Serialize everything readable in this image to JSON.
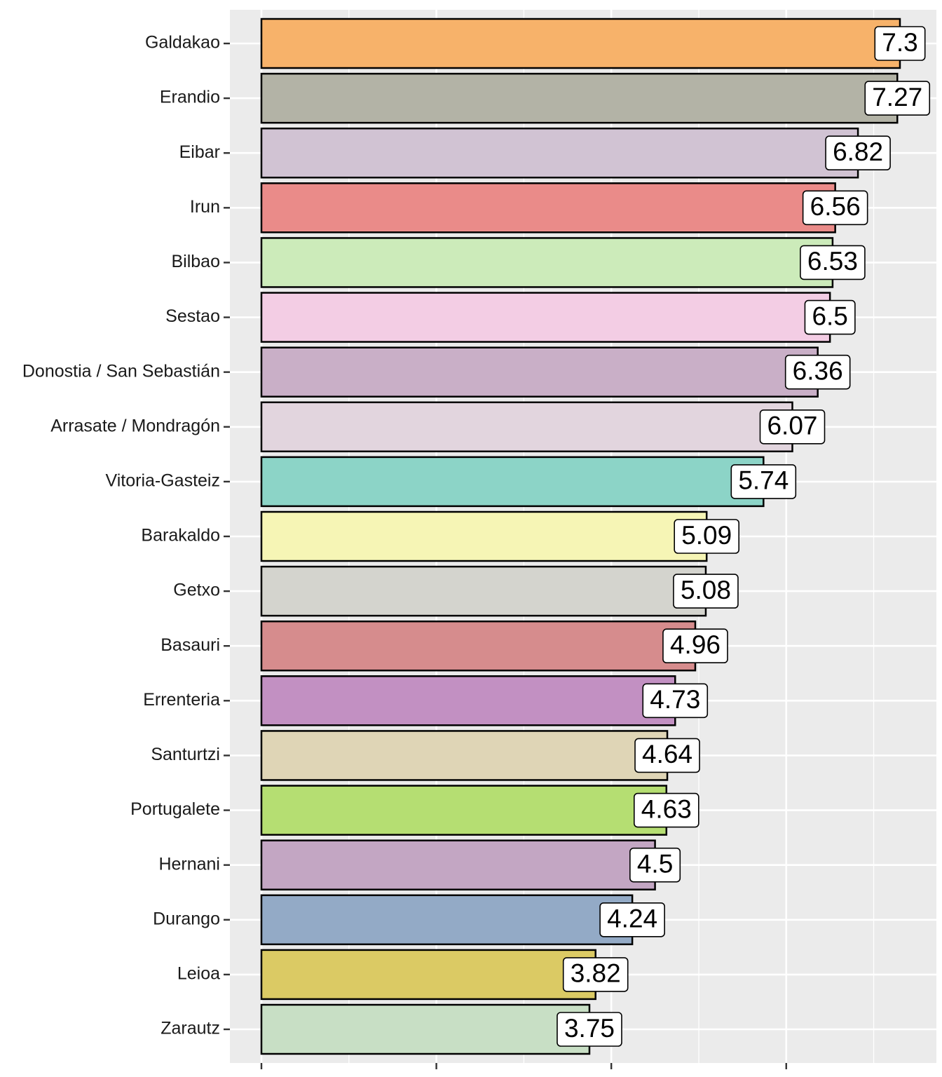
{
  "chart_data": {
    "type": "bar",
    "orientation": "horizontal",
    "title": "",
    "xlabel": "",
    "ylabel": "",
    "xlim": [
      0,
      7.6
    ],
    "categories": [
      "Galdakao",
      "Erandio",
      "Eibar",
      "Irun",
      "Bilbao",
      "Sestao",
      "Donostia / San Sebastián",
      "Arrasate / Mondragón",
      "Vitoria-Gasteiz",
      "Barakaldo",
      "Getxo",
      "Basauri",
      "Errenteria",
      "Santurtzi",
      "Portugalete",
      "Hernani",
      "Durango",
      "Leioa",
      "Zarautz"
    ],
    "values": [
      7.3,
      7.27,
      6.82,
      6.56,
      6.53,
      6.5,
      6.36,
      6.07,
      5.74,
      5.09,
      5.08,
      4.96,
      4.73,
      4.64,
      4.63,
      4.5,
      4.24,
      3.82,
      3.75
    ],
    "value_labels": [
      "7.3",
      "7.27",
      "6.82",
      "6.56",
      "6.53",
      "6.5",
      "6.36",
      "6.07",
      "5.74",
      "5.09",
      "5.08",
      "4.96",
      "4.73",
      "4.64",
      "4.63",
      "4.5",
      "4.24",
      "3.82",
      "3.75"
    ],
    "colors": [
      "#f7b26a",
      "#b3b3a6",
      "#d1c3d3",
      "#ea8b89",
      "#ccebba",
      "#f3cde4",
      "#c9afc7",
      "#e2d5de",
      "#8cd4c7",
      "#f6f5b5",
      "#d4d4ce",
      "#d68c8d",
      "#c290c2",
      "#dfd5b6",
      "#b5de72",
      "#c3a6c3",
      "#93aac6",
      "#dbca64",
      "#c8dfc5"
    ],
    "x_tick_labels": [],
    "grid": true,
    "legend": "none",
    "panel_background": "#ebebeb",
    "grid_color": "#ffffff",
    "bar_outline": "#000000"
  }
}
